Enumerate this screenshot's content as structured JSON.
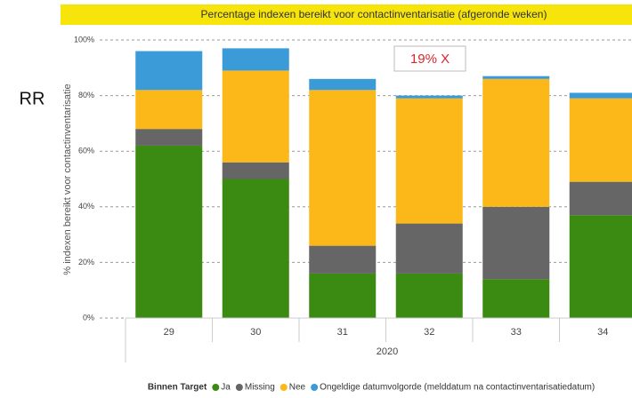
{
  "side_note": "RR",
  "chart_data": {
    "type": "stacked_bar",
    "title": "Percentage indexen bereikt voor contactinventarisatie (afgeronde weken)",
    "y_label": "% indexen bereikt voor contactinventarisatie",
    "x_label": "2020",
    "legend_title": "Binnen Target",
    "annotation": "19% X",
    "categories": [
      "29",
      "30",
      "31",
      "32",
      "33",
      "34"
    ],
    "series": [
      {
        "name": "Ja",
        "color": "#3b8a12",
        "values": [
          62,
          50,
          16,
          16,
          14,
          37
        ]
      },
      {
        "name": "Missing",
        "color": "#666666",
        "values": [
          6,
          6,
          10,
          18,
          26,
          12
        ]
      },
      {
        "name": "Nee",
        "color": "#fbb818",
        "values": [
          14,
          33,
          56,
          45,
          46,
          30
        ]
      },
      {
        "name": "Ongeldige datumvolgorde (melddatum na contactinventarisatiedatum)",
        "color": "#3a9bd8",
        "values": [
          14,
          8,
          4,
          1,
          1,
          2
        ]
      }
    ],
    "ylim": [
      0,
      100
    ],
    "yticks": [
      {
        "value": 0,
        "label": "0%"
      },
      {
        "value": 20,
        "label": "20%"
      },
      {
        "value": 40,
        "label": "40%"
      },
      {
        "value": 60,
        "label": "60%"
      },
      {
        "value": 80,
        "label": "80%"
      },
      {
        "value": 100,
        "label": "100%"
      }
    ],
    "grid": true
  }
}
